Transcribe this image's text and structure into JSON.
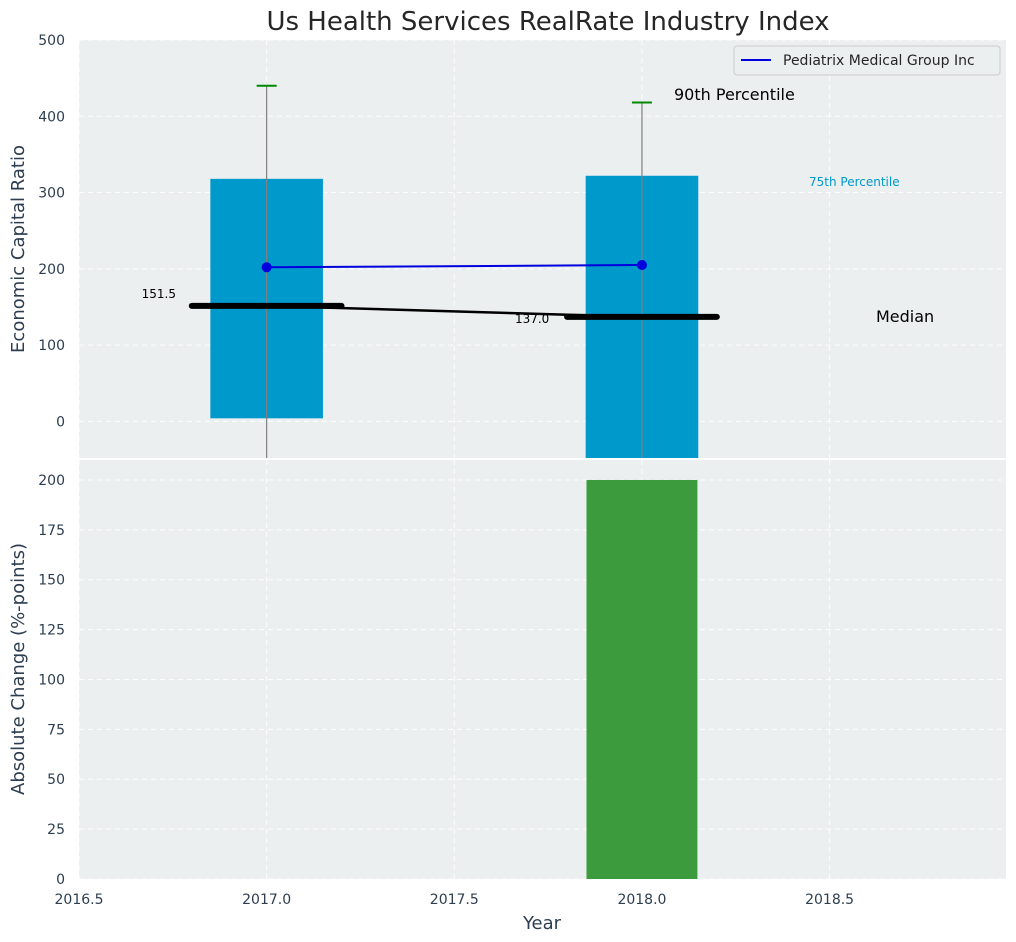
{
  "chart_data": [
    {
      "type": "bar",
      "panel": "top",
      "title": "Us Health Services RealRate Industry Index",
      "ylabel": "Economic Capital Ratio",
      "xlim": [
        2016.5,
        2018.97
      ],
      "ylim": [
        -48,
        500
      ],
      "yticks": [
        0,
        100,
        200,
        300,
        400,
        500
      ],
      "grid": true,
      "legend": {
        "placement": "top-right",
        "entries": [
          "Pediatrix Medical Group Inc"
        ]
      },
      "colors": {
        "bar": "#0099cc",
        "company": "#0000dd",
        "median": "#000000",
        "whisker": "#008800",
        "whisker_line": "#808080",
        "background": "#ebeff0"
      },
      "percentile_bars": [
        {
          "x": 2017,
          "bottom": 4,
          "top": 318
        },
        {
          "x": 2018,
          "bottom": -48,
          "top": 322
        }
      ],
      "percentile_90": [
        {
          "x": 2017,
          "value": 440
        },
        {
          "x": 2018,
          "value": 418
        }
      ],
      "median": [
        {
          "x": 2017,
          "value": 151.5,
          "label": "151.5"
        },
        {
          "x": 2018,
          "value": 137.0,
          "label": "137.0"
        }
      ],
      "series": [
        {
          "name": "Pediatrix Medical Group Inc",
          "x": [
            2017,
            2018
          ],
          "values": [
            202,
            205
          ]
        }
      ],
      "annotations": {
        "p90": "90th Percentile",
        "p75": "75th Percentile",
        "median": "Median"
      }
    },
    {
      "type": "bar",
      "panel": "bottom",
      "xlabel": "Year",
      "ylabel": "Absolute Change (%-points)",
      "xlim": [
        2016.5,
        2018.97
      ],
      "ylim": [
        0,
        210
      ],
      "xticks": [
        2016.5,
        2017.0,
        2017.5,
        2018.0,
        2018.5
      ],
      "xtick_labels": [
        "2016.5",
        "2017.0",
        "2017.5",
        "2018.0",
        "2018.5"
      ],
      "yticks": [
        0,
        25,
        50,
        75,
        100,
        125,
        150,
        175,
        200
      ],
      "grid": true,
      "colors": {
        "bar": "#3c9b3c"
      },
      "bars": [
        {
          "x": 2018,
          "value": 200
        }
      ]
    }
  ]
}
